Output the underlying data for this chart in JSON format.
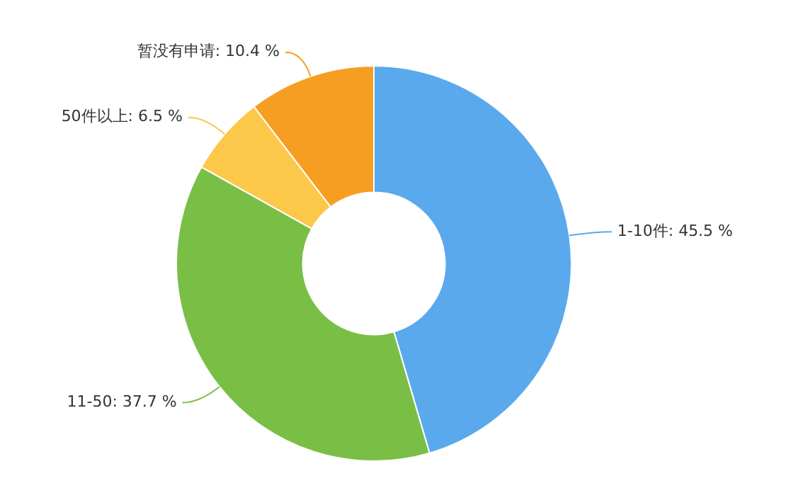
{
  "chart_data": {
    "type": "donut",
    "categories": [
      "1-10件",
      "11-50",
      "50件以上",
      "暂没有申请"
    ],
    "values": [
      45.5,
      37.7,
      6.5,
      10.4
    ],
    "colors": [
      "#5aa9ec",
      "#7abf45",
      "#fcc84a",
      "#f59e22"
    ],
    "value_labels": [
      "45.5 %",
      "37.7 %",
      "6.5 %",
      "10.4 %"
    ],
    "legend": false
  }
}
